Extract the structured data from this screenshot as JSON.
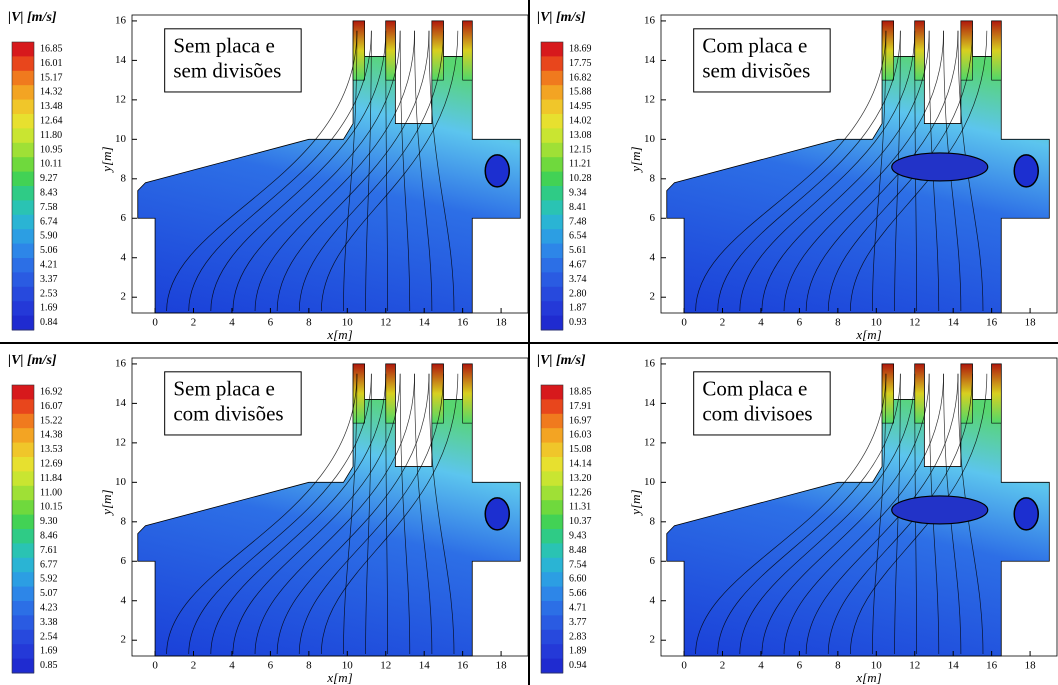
{
  "panels": [
    {
      "title": [
        "Sem placa e",
        "sem divisões"
      ],
      "colorbar_title": "|V| [m/s]",
      "colorbar_labels": [
        "16.85",
        "16.01",
        "15.17",
        "14.32",
        "13.48",
        "12.64",
        "11.80",
        "10.95",
        "10.11",
        "9.27",
        "8.43",
        "7.58",
        "6.74",
        "5.90",
        "5.06",
        "4.21",
        "3.37",
        "2.53",
        "1.69",
        "0.84"
      ],
      "x_label": "x[m]",
      "y_label": "y[m]",
      "xlim": [
        -1.2,
        19.4
      ],
      "ylim": [
        1.2,
        16.3
      ],
      "xticks": [
        0,
        2,
        4,
        6,
        8,
        10,
        12,
        14,
        16,
        18
      ],
      "yticks": [
        2,
        4,
        6,
        8,
        10,
        12,
        14,
        16
      ]
    },
    {
      "title": [
        "Com placa e",
        "sem divisões"
      ],
      "colorbar_title": "|V| [m/s]",
      "colorbar_labels": [
        "18.69",
        "17.75",
        "16.82",
        "15.88",
        "14.95",
        "14.02",
        "13.08",
        "12.15",
        "11.21",
        "10.28",
        "9.34",
        "8.41",
        "7.48",
        "6.54",
        "5.61",
        "4.67",
        "3.74",
        "2.80",
        "1.87",
        "0.93"
      ],
      "x_label": "x[m]",
      "y_label": "y[m]",
      "xlim": [
        -1.2,
        19.4
      ],
      "ylim": [
        1.2,
        16.3
      ],
      "xticks": [
        0,
        2,
        4,
        6,
        8,
        10,
        12,
        14,
        16,
        18
      ],
      "yticks": [
        2,
        4,
        6,
        8,
        10,
        12,
        14,
        16
      ]
    },
    {
      "title": [
        "Sem placa e",
        "com divisões"
      ],
      "colorbar_title": "|V| [m/s]",
      "colorbar_labels": [
        "16.92",
        "16.07",
        "15.22",
        "14.38",
        "13.53",
        "12.69",
        "11.84",
        "11.00",
        "10.15",
        "9.30",
        "8.46",
        "7.61",
        "6.77",
        "5.92",
        "5.07",
        "4.23",
        "3.38",
        "2.54",
        "1.69",
        "0.85"
      ],
      "x_label": "x[m]",
      "y_label": "y[m]",
      "xlim": [
        -1.2,
        19.4
      ],
      "ylim": [
        1.2,
        16.3
      ],
      "xticks": [
        0,
        2,
        4,
        6,
        8,
        10,
        12,
        14,
        16,
        18
      ],
      "yticks": [
        2,
        4,
        6,
        8,
        10,
        12,
        14,
        16
      ]
    },
    {
      "title": [
        "Com placa e",
        "com divisoes"
      ],
      "colorbar_title": "|V| [m/s]",
      "colorbar_labels": [
        "18.85",
        "17.91",
        "16.97",
        "16.03",
        "15.08",
        "14.14",
        "13.20",
        "12.26",
        "11.31",
        "10.37",
        "9.43",
        "8.48",
        "7.54",
        "6.60",
        "5.66",
        "4.71",
        "3.77",
        "2.83",
        "1.89",
        "0.94"
      ],
      "x_label": "x[m]",
      "y_label": "y[m]",
      "xlim": [
        -1.2,
        19.4
      ],
      "ylim": [
        1.2,
        16.3
      ],
      "xticks": [
        0,
        2,
        4,
        6,
        8,
        10,
        12,
        14,
        16,
        18
      ],
      "yticks": [
        2,
        4,
        6,
        8,
        10,
        12,
        14,
        16
      ]
    }
  ]
}
